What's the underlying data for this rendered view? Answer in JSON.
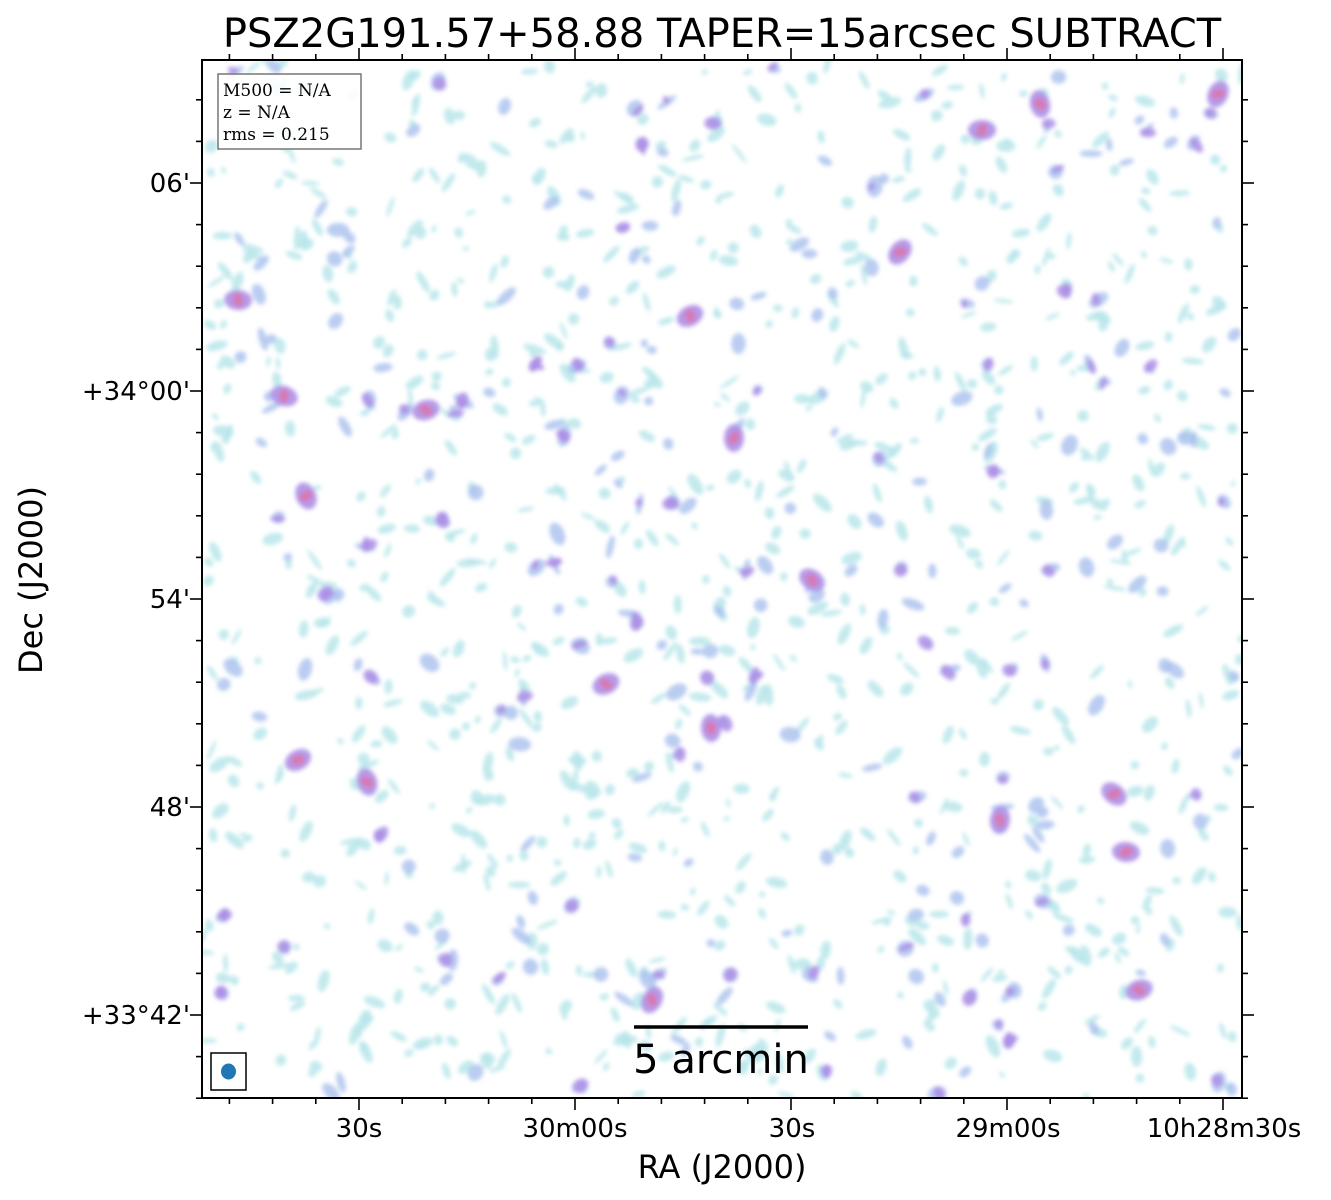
{
  "figure": {
    "title": "PSZ2G191.57+58.88 TAPER=15arcsec SUBTRACT",
    "xlabel": "RA (J2000)",
    "ylabel": "Dec (J2000)"
  },
  "axes": {
    "x_ticks": [
      "30s",
      "30m00s",
      "30s",
      "29m00s",
      "10h28m30s"
    ],
    "y_ticks": [
      "06'",
      "+34°00'",
      "54'",
      "48'",
      "+33°42'"
    ]
  },
  "info_box": {
    "lines": [
      "M500 = N/A",
      "z = N/A",
      "rms = 0.215"
    ]
  },
  "scalebar": {
    "label": "5 arcmin"
  },
  "colors": {
    "faint": "#b9e6ea",
    "mid": "#a9c0ee",
    "bright": "#ad8fe6",
    "peak": "#d977ae",
    "beam": "#1f77b4"
  }
}
